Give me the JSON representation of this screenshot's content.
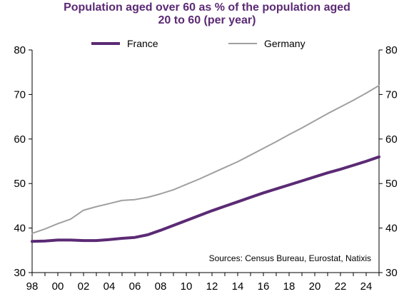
{
  "chart_data": {
    "type": "line",
    "title": "Population aged over 60 as % of the population aged 20 to 60 (per year)",
    "title_lines": [
      "Population aged over 60 as % of the population aged",
      "20 to 60 (per year)"
    ],
    "source": "Sources: Census Bureau, Eurostat, Natixis",
    "xlabel": "",
    "ylabel": "",
    "x": [
      1998,
      1999,
      2000,
      2001,
      2002,
      2003,
      2004,
      2005,
      2006,
      2007,
      2008,
      2009,
      2010,
      2011,
      2012,
      2013,
      2014,
      2015,
      2016,
      2017,
      2018,
      2019,
      2020,
      2021,
      2022,
      2023,
      2024,
      2025
    ],
    "x_tick_values": [
      1998,
      2000,
      2002,
      2004,
      2006,
      2008,
      2010,
      2012,
      2014,
      2016,
      2018,
      2020,
      2022,
      2024
    ],
    "x_tick_labels": [
      "98",
      "00",
      "02",
      "04",
      "06",
      "08",
      "10",
      "12",
      "14",
      "16",
      "18",
      "20",
      "22",
      "24"
    ],
    "xlim": [
      1998,
      2025
    ],
    "ylim": [
      30,
      80
    ],
    "y_ticks": [
      "30",
      "40",
      "50",
      "60",
      "70",
      "80"
    ],
    "y_tick_values": [
      30,
      40,
      50,
      60,
      70,
      80
    ],
    "grid": false,
    "legend_position": "top",
    "series": [
      {
        "name": "France",
        "color": "#5b2a74",
        "values": [
          37.0,
          37.1,
          37.3,
          37.3,
          37.2,
          37.2,
          37.4,
          37.7,
          37.9,
          38.5,
          39.5,
          40.6,
          41.7,
          42.8,
          43.9,
          44.9,
          45.9,
          46.9,
          47.9,
          48.8,
          49.7,
          50.6,
          51.5,
          52.4,
          53.2,
          54.1,
          55.0,
          56.0
        ]
      },
      {
        "name": "Germany",
        "color": "#a0a0a0",
        "values": [
          38.8,
          39.8,
          41.0,
          42.0,
          44.0,
          44.8,
          45.5,
          46.2,
          46.4,
          46.9,
          47.7,
          48.6,
          49.8,
          51.0,
          52.3,
          53.6,
          54.9,
          56.4,
          57.9,
          59.4,
          61.0,
          62.5,
          64.1,
          65.7,
          67.2,
          68.7,
          70.3,
          72.0
        ]
      }
    ]
  }
}
